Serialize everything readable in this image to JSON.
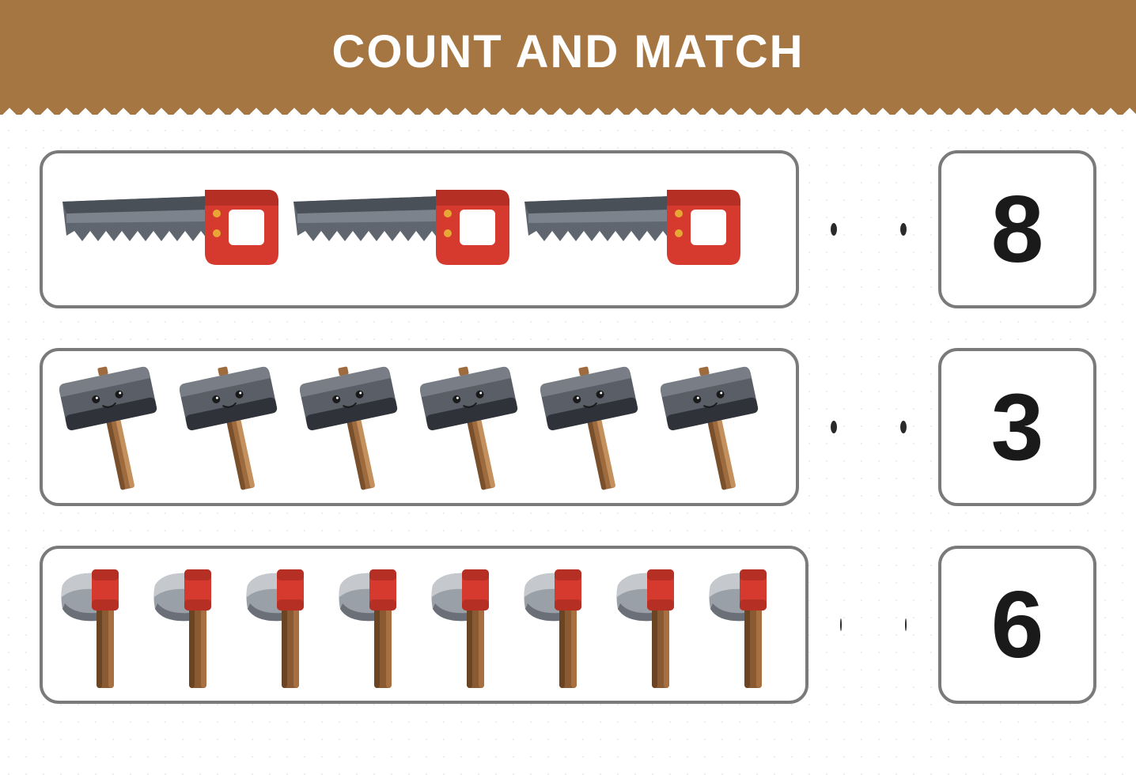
{
  "title": "COUNT AND MATCH",
  "header_bg": "#a67642",
  "header_text_color": "#ffffff",
  "header_fontsize": 58,
  "border_color": "#7a7a7a",
  "border_radius": 24,
  "dot_color": "#2a2a2a",
  "background": "#ffffff",
  "dot_pattern_color": "#e8e8e8",
  "rows": [
    {
      "item_type": "saw",
      "count": 3,
      "number": "8",
      "item_width": 280,
      "item_height": 120,
      "colors": {
        "blade_fill": "#5f6670",
        "blade_dark": "#4a5058",
        "blade_light": "#9aa0a8",
        "handle_fill": "#d63a2e",
        "handle_dark": "#b52f24",
        "rivet": "#e8a735"
      }
    },
    {
      "item_type": "hammer",
      "count": 6,
      "number": "3",
      "item_width": 140,
      "item_height": 170,
      "colors": {
        "head_fill": "#5a5e66",
        "head_light": "#787d86",
        "head_dark": "#2f3238",
        "handle_fill": "#9e6b3f",
        "handle_dark": "#7a4f2c",
        "handle_light": "#c4915e",
        "face": "#1a1a1a"
      }
    },
    {
      "item_type": "axe",
      "count": 8,
      "number": "6",
      "item_width": 105,
      "item_height": 170,
      "colors": {
        "blade_fill": "#9aa0a8",
        "blade_light": "#c5c9ce",
        "blade_dark": "#6b7078",
        "head_fill": "#d63a2e",
        "head_dark": "#b52f24",
        "handle_fill": "#8a5a32",
        "handle_dark": "#6b4423",
        "handle_light": "#a86f40"
      }
    }
  ]
}
